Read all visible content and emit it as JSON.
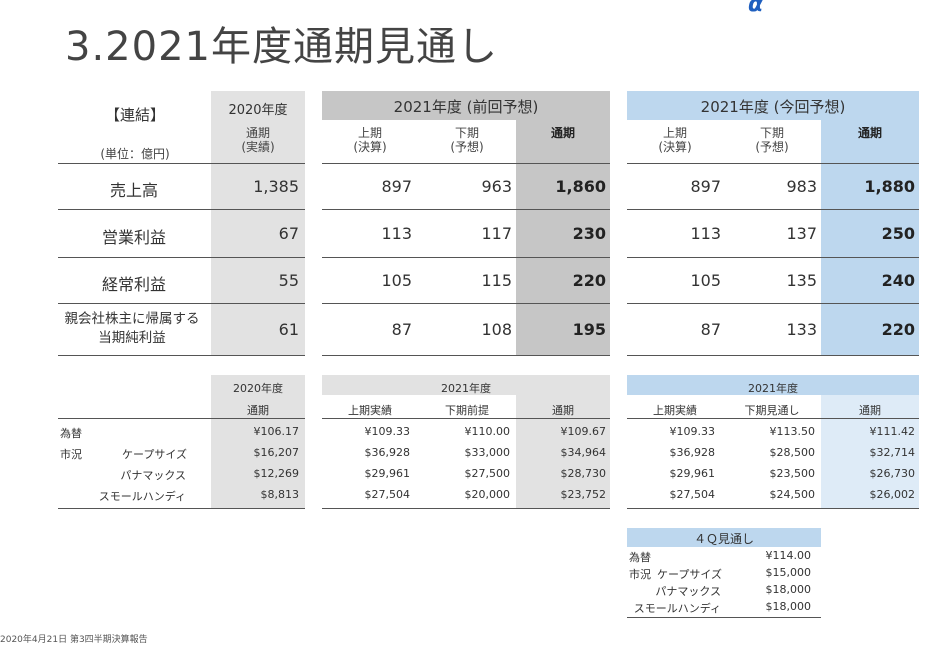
{
  "title": "3.2021年度通期見通し",
  "footnote": "2020年4月21日 第3四半期決算報告",
  "main": {
    "corner_label": "【連結】",
    "unit_label": "(単位：億円)",
    "groups": [
      "2020年度",
      "2021年度 (前回予想)",
      "2021年度 (今回予想)"
    ],
    "subheads": [
      "通期\n(実績)",
      "上期\n(決算)",
      "下期\n(予想)",
      "通期",
      "上期\n(決算)",
      "下期\n(予想)",
      "通期"
    ],
    "rows": [
      {
        "label": "売上高",
        "values": [
          "1,385",
          "897",
          "963",
          "1,860",
          "897",
          "983",
          "1,880"
        ]
      },
      {
        "label": "営業利益",
        "values": [
          "67",
          "113",
          "117",
          "230",
          "113",
          "137",
          "250"
        ]
      },
      {
        "label": "経常利益",
        "values": [
          "55",
          "105",
          "115",
          "220",
          "105",
          "135",
          "240"
        ]
      },
      {
        "label": "親会社株主に帰属する\n当期純利益",
        "values": [
          "61",
          "87",
          "108",
          "195",
          "87",
          "133",
          "220"
        ]
      }
    ]
  },
  "market": {
    "groups": [
      "2020年度",
      "2021年度",
      "2021年度"
    ],
    "subheads": [
      "通期",
      "上期実績",
      "下期前提",
      "通期",
      "上期実績",
      "下期見通し",
      "通期"
    ],
    "market_label": "市況",
    "rows": [
      {
        "label": "為替",
        "values": [
          "¥106.17",
          "¥109.33",
          "¥110.00",
          "¥109.67",
          "¥109.33",
          "¥113.50",
          "¥111.42"
        ]
      },
      {
        "label": "ケープサイズ",
        "values": [
          "$16,207",
          "$36,928",
          "$33,000",
          "$34,964",
          "$36,928",
          "$28,500",
          "$32,714"
        ]
      },
      {
        "label": "パナマックス",
        "values": [
          "$12,269",
          "$29,961",
          "$27,500",
          "$28,730",
          "$29,961",
          "$23,500",
          "$26,730"
        ]
      },
      {
        "label": "スモールハンディ",
        "values": [
          "$8,813",
          "$27,504",
          "$20,000",
          "$23,752",
          "$27,504",
          "$24,500",
          "$26,002"
        ]
      }
    ]
  },
  "q4": {
    "header": "４Ｑ見通し",
    "market_label": "市況",
    "rows": [
      {
        "label": "為替",
        "value": "¥114.00"
      },
      {
        "label": "ケープサイズ",
        "value": "$15,000"
      },
      {
        "label": "パナマックス",
        "value": "$18,000"
      },
      {
        "label": "スモールハンディ",
        "value": "$18,000"
      }
    ]
  },
  "colors": {
    "gray_light": "#e2e2e2",
    "gray_dark": "#c6c6c6",
    "blue": "#bdd7ee",
    "blue_light": "#deebf7"
  }
}
